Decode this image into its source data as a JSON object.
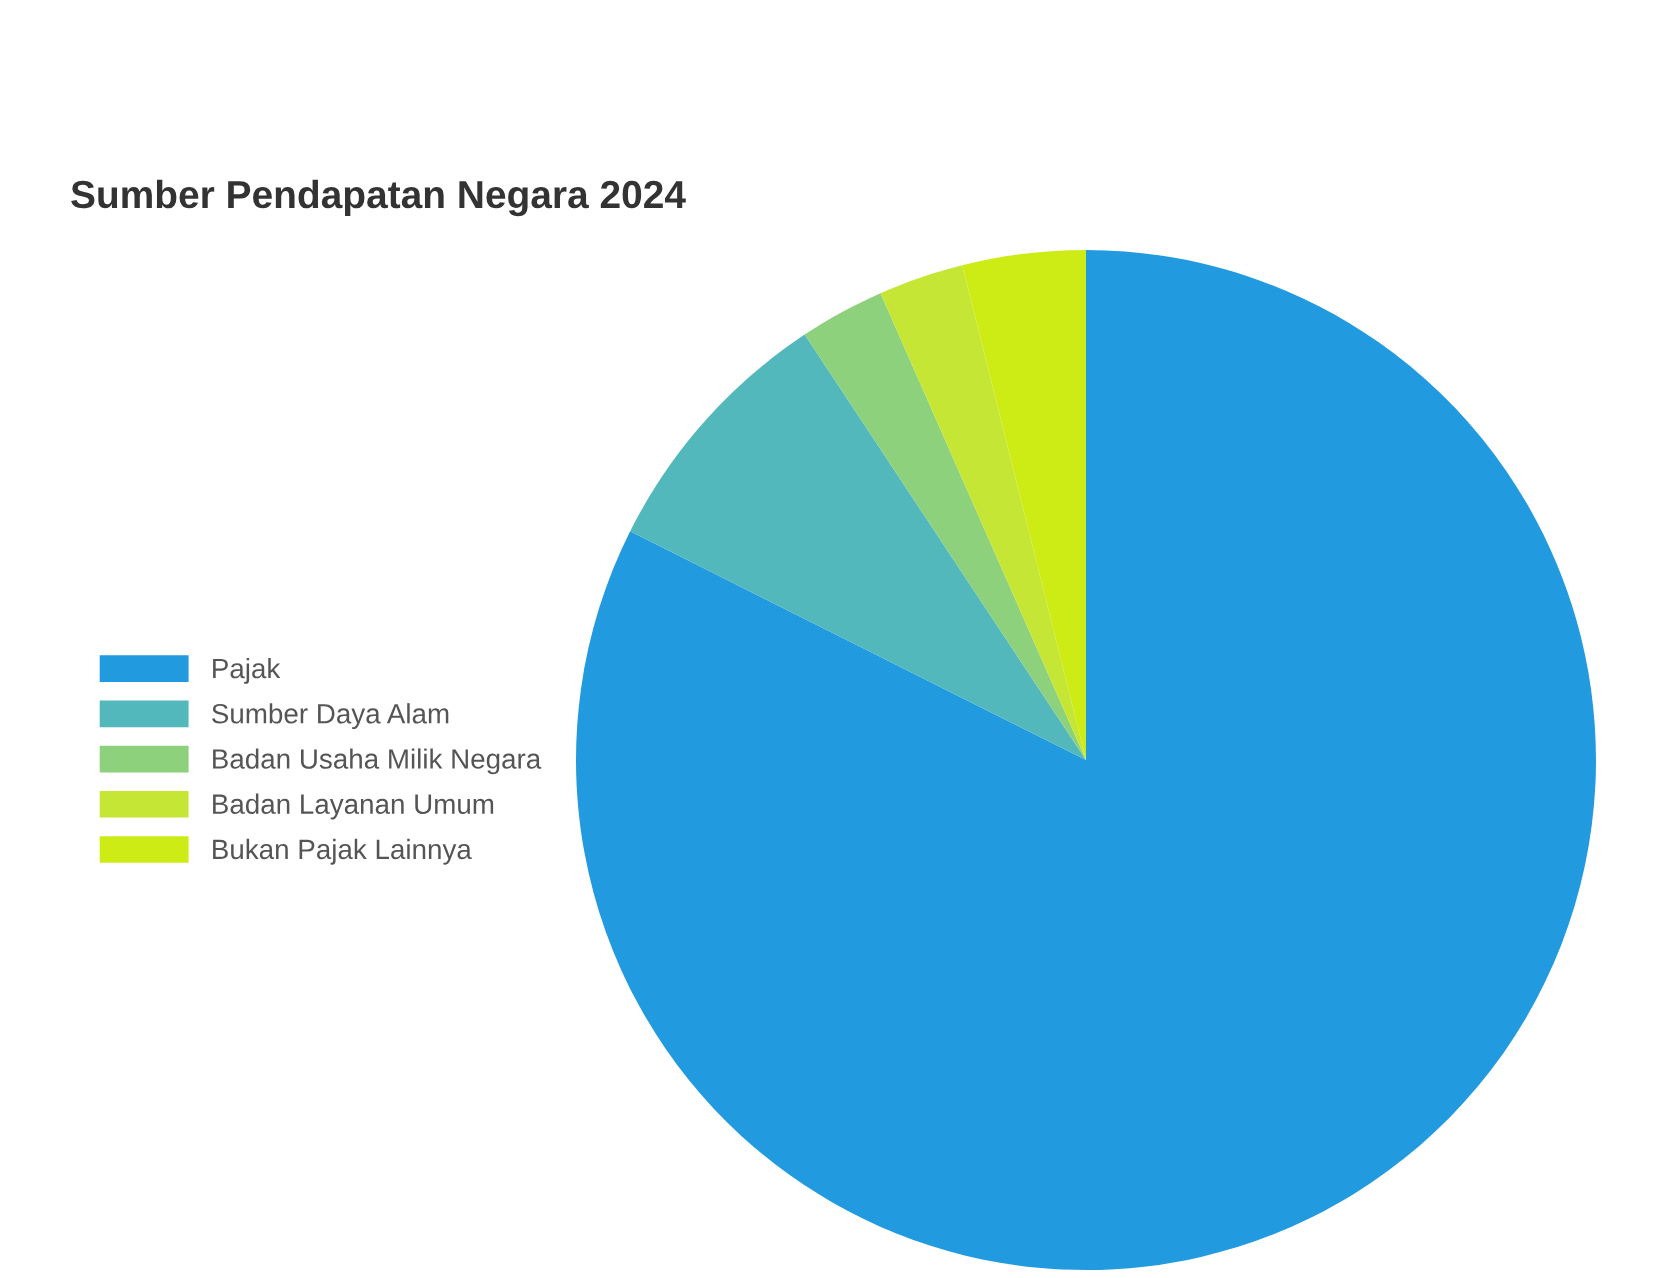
{
  "chart_data": {
    "type": "pie",
    "title": "Sumber Pendapatan Negara 2024",
    "categories": [
      "Pajak",
      "Sumber Daya Alam",
      "Badan Usaha Milik Negara",
      "Badan Layanan Umum",
      "Bukan Pajak Lainnya"
    ],
    "values": [
      82.4,
      8.3,
      2.7,
      2.7,
      3.9
    ],
    "colors": [
      "#229ae0",
      "#52b8bb",
      "#8dd17d",
      "#c6e635",
      "#cdeb15"
    ],
    "legend": "left"
  }
}
